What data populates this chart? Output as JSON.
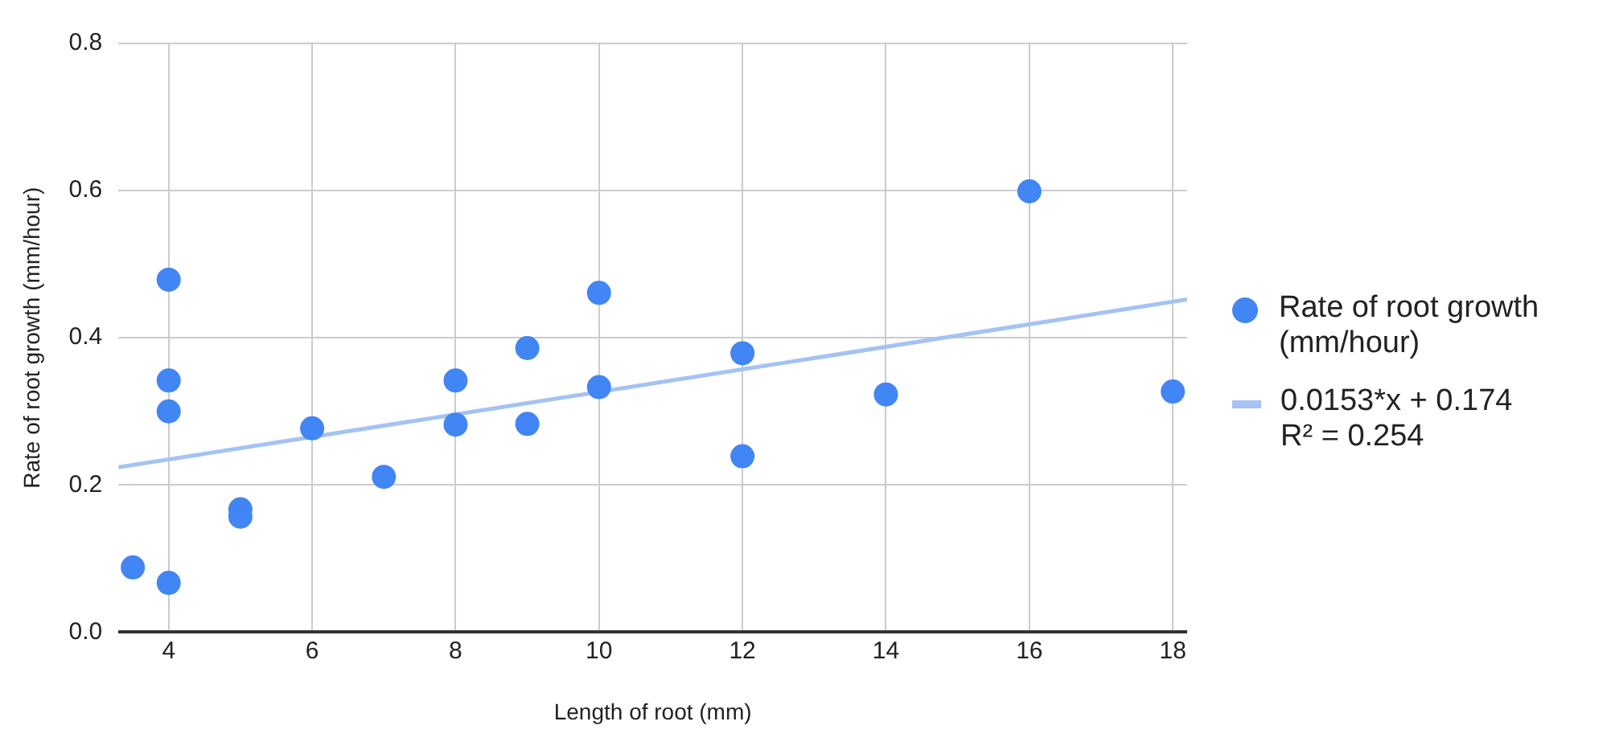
{
  "chart_data": {
    "type": "scatter",
    "xlabel": "Length of root (mm)",
    "ylabel": "Rate of root growth (mm/hour)",
    "xlim": [
      3.3,
      18.2
    ],
    "xticks": [
      4,
      6,
      8,
      10,
      12,
      14,
      16,
      18
    ],
    "ylim": [
      0,
      0.8
    ],
    "yticks": [
      {
        "value": 0,
        "label": "0.0"
      },
      0.2,
      0.4,
      0.6,
      0.8
    ],
    "grid": true,
    "legend": "right",
    "marker": "circle",
    "series": [
      {
        "name": "Rate of root growth (mm/hour)",
        "color": "#4285f4",
        "x": [
          3.5,
          4,
          4,
          4,
          4,
          5,
          5,
          6,
          7,
          8,
          8,
          9,
          9,
          10,
          10,
          12,
          12,
          14,
          16,
          18
        ],
        "values": [
          0.088,
          0.067,
          0.3,
          0.342,
          0.479,
          0.167,
          0.157,
          0.277,
          0.211,
          0.342,
          0.282,
          0.386,
          0.283,
          0.461,
          0.333,
          0.379,
          0.239,
          0.323,
          0.599,
          0.327
        ]
      },
      {
        "name": "0.0153*x + 0.174\nR² = 0.254",
        "color": "#a4c2f4",
        "type": "line",
        "marker": "none",
        "x": [
          3.3,
          18.2
        ],
        "values": [
          0.224,
          0.452
        ]
      }
    ]
  }
}
